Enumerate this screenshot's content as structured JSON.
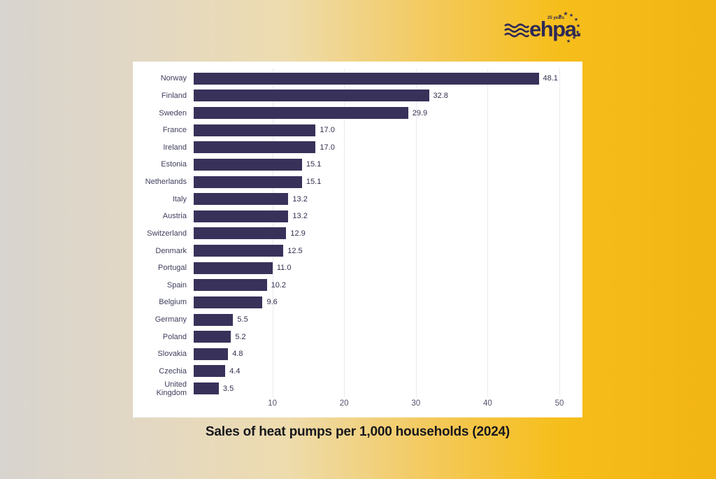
{
  "logo": {
    "brand": "ehpa.",
    "anniversary": "25 years",
    "color": "#2e2a55"
  },
  "title": "Sales of heat pumps per 1,000 households (2024)",
  "chart_data": {
    "type": "bar",
    "orientation": "horizontal",
    "title": "Sales of heat pumps per 1,000 households (2024)",
    "xlabel": "",
    "ylabel": "",
    "categories": [
      "Norway",
      "Finland",
      "Sweden",
      "France",
      "Ireland",
      "Estonia",
      "Netherlands",
      "Italy",
      "Austria",
      "Switzerland",
      "Denmark",
      "Portugal",
      "Spain",
      "Belgium",
      "Germany",
      "Poland",
      "Slovakia",
      "Czechia",
      "United Kingdom"
    ],
    "values": [
      48.1,
      32.8,
      29.9,
      17.0,
      17.0,
      15.1,
      15.1,
      13.2,
      13.2,
      12.9,
      12.5,
      11.0,
      10.2,
      9.6,
      5.5,
      5.2,
      4.8,
      4.4,
      3.5
    ],
    "value_labels": [
      "48.1",
      "32.8",
      "29.9",
      "17.0",
      "17.0",
      "15.1",
      "15.1",
      "13.2",
      "13.2",
      "12.9",
      "12.5",
      "11.0",
      "10.2",
      "9.6",
      "5.5",
      "5.2",
      "4.8",
      "4.4",
      "3.5"
    ],
    "x_ticks": [
      10,
      20,
      30,
      40,
      50
    ],
    "xlim": [
      0,
      51.6
    ],
    "grid": true,
    "bar_color": "#38325a",
    "gridline_color": "#e9e9f1",
    "background": "#ffffff"
  },
  "page": {
    "background_left": "#d8d4cf",
    "background_right": "#f2b513"
  }
}
